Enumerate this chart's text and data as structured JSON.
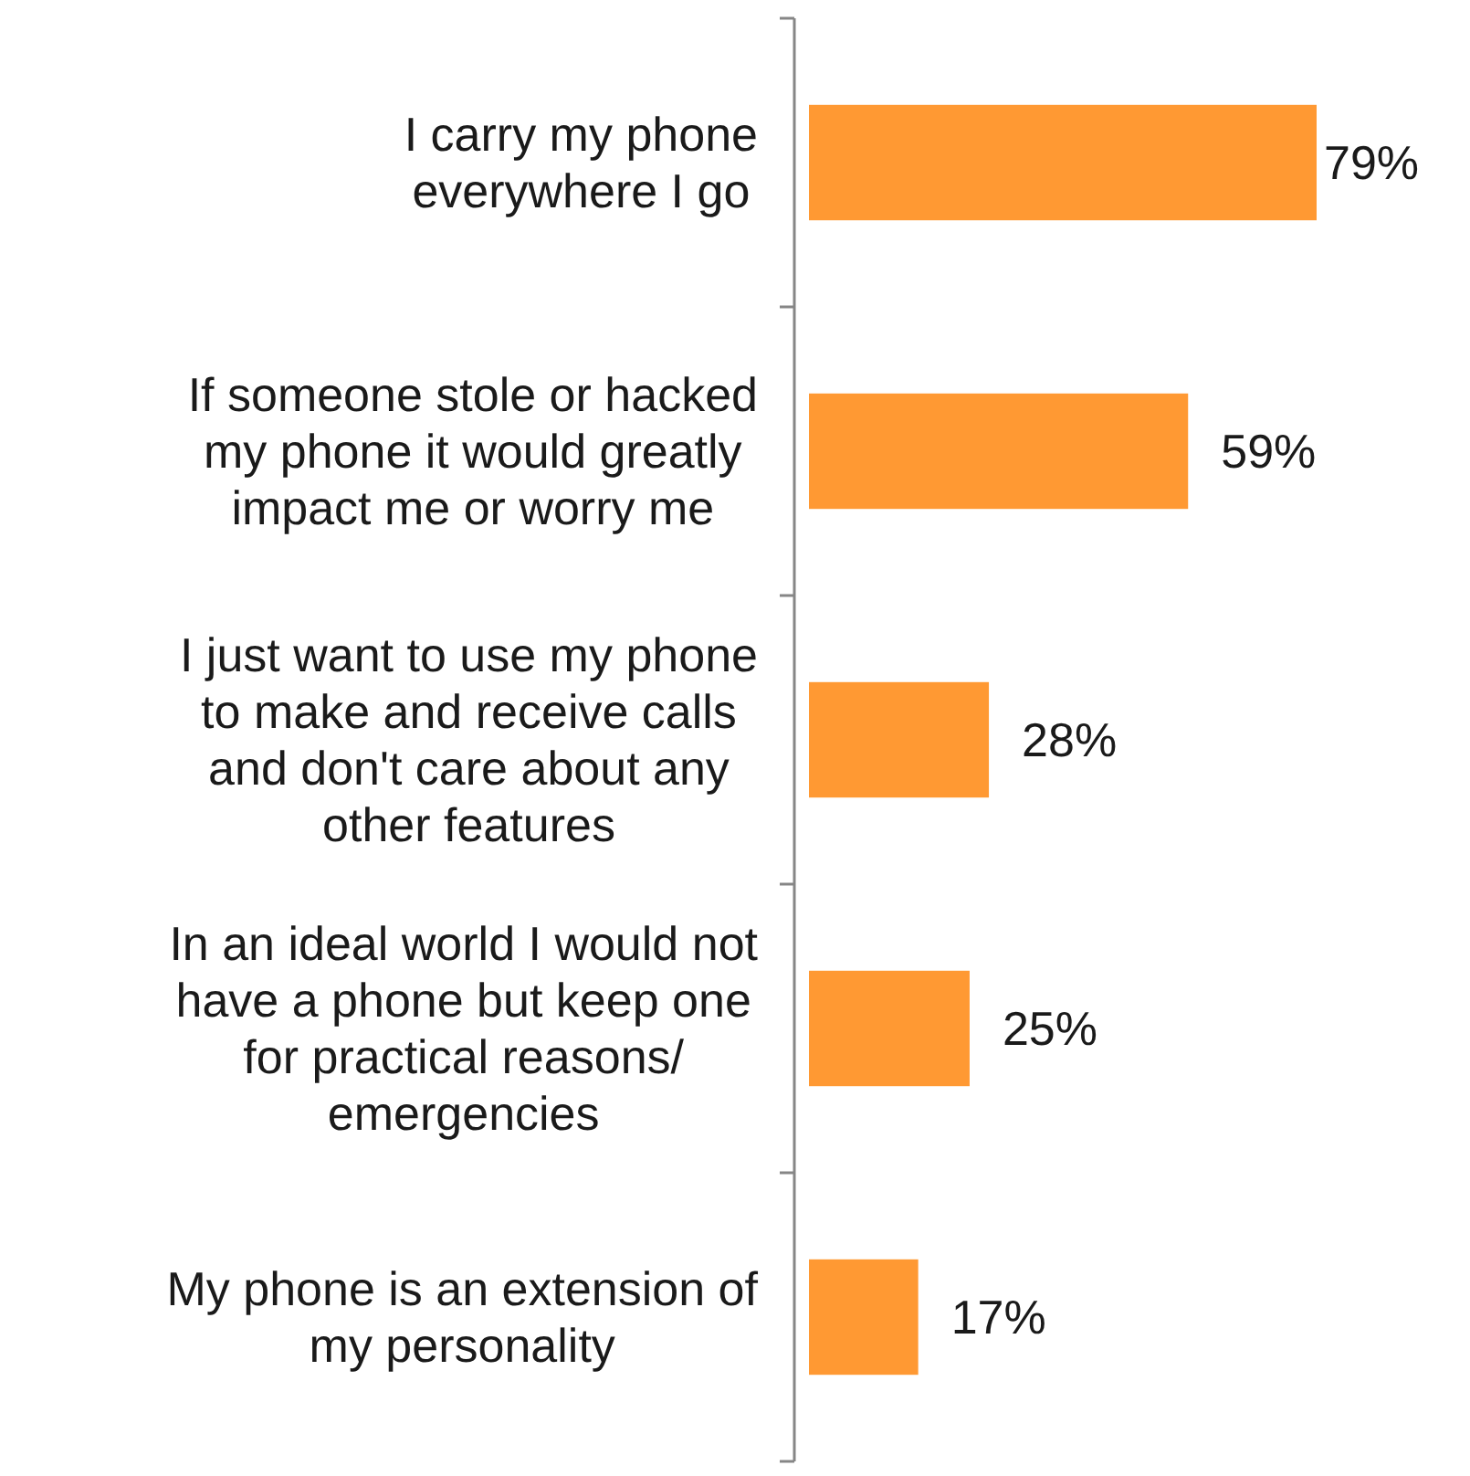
{
  "chart_data": {
    "type": "bar",
    "orientation": "horizontal",
    "categories": [
      "I carry my phone\neverywhere I go",
      "If someone stole or hacked\nmy phone it would greatly\nimpact me or worry me",
      "I just want to use my phone\nto make and receive calls\nand don't care about any\nother features",
      "In an ideal world I would not\nhave a phone but keep one\nfor practical reasons/\nemergencies",
      "My phone is an extension of\nmy personality"
    ],
    "values": [
      79,
      59,
      28,
      25,
      17
    ],
    "value_labels": [
      "79%",
      "59%",
      "28%",
      "25%",
      "17%"
    ],
    "color": "#ff9933"
  }
}
